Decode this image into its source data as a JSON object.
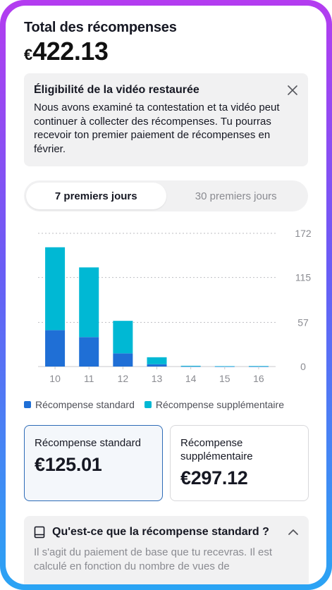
{
  "summary": {
    "title": "Total des récompenses",
    "currency": "€",
    "amount": "422.13"
  },
  "notice": {
    "title": "Éligibilité de la vidéo restaurée",
    "body": "Nous avons examiné ta contestation et ta vidéo peut continuer à collecter des récompenses. Tu pourras recevoir ton premier paiement de récompenses en février."
  },
  "tabs": [
    {
      "label": "7 premiers jours",
      "active": true
    },
    {
      "label": "30 premiers jours",
      "active": false
    }
  ],
  "chart_data": {
    "type": "bar",
    "stacked": true,
    "categories": [
      "10",
      "11",
      "12",
      "13",
      "14",
      "15",
      "16"
    ],
    "series": [
      {
        "name": "Récompense standard",
        "color": "#1f6fd6",
        "values": [
          47,
          38,
          17,
          3,
          0.2,
          0.1,
          0.1
        ]
      },
      {
        "name": "Récompense supplémentaire",
        "color": "#00b8d4",
        "values": [
          107,
          90,
          42,
          9,
          0.8,
          0.4,
          0.6
        ]
      }
    ],
    "y_ticks": [
      "172",
      "115",
      "57",
      "0"
    ],
    "ylim": [
      0,
      172
    ],
    "grid": true
  },
  "legend": [
    {
      "label": "Récompense standard",
      "color": "#1f6fd6"
    },
    {
      "label": "Récompense supplémentaire",
      "color": "#00b8d4"
    }
  ],
  "cards": [
    {
      "label": "Récompense standard",
      "value": "€125.01",
      "selected": true
    },
    {
      "label": "Récompense supplémentaire",
      "value": "€297.12",
      "selected": false
    }
  ],
  "faq": {
    "title": "Qu'est-ce que la récompense standard ?",
    "body": "Il s'agit du paiement de base que tu recevras. Il est calculé en fonction du nombre de vues de"
  }
}
